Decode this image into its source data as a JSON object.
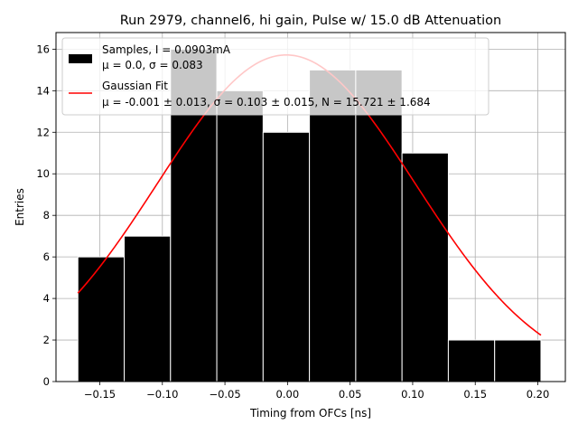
{
  "chart_data": {
    "type": "bar",
    "title": "Run 2979, channel6, hi gain, Pulse w/ 15.0 dB Attenuation",
    "xlabel": "Timing from OFCs [ns]",
    "ylabel": "Entries",
    "xlim": [
      -0.185,
      0.222
    ],
    "ylim": [
      0,
      16.8
    ],
    "xticks": [
      -0.15,
      -0.1,
      -0.05,
      0.0,
      0.05,
      0.1,
      0.15,
      0.2
    ],
    "xtick_labels": [
      "−0.15",
      "−0.10",
      "−0.05",
      "0.00",
      "0.05",
      "0.10",
      "0.15",
      "0.20"
    ],
    "yticks": [
      0,
      2,
      4,
      6,
      8,
      10,
      12,
      14,
      16
    ],
    "ytick_labels": [
      "0",
      "2",
      "4",
      "6",
      "8",
      "10",
      "12",
      "14",
      "16"
    ],
    "grid": true,
    "legend_placement": "top-left",
    "histogram": {
      "bin_edges": [
        -0.1675,
        -0.1305,
        -0.0935,
        -0.0565,
        -0.0195,
        0.0175,
        0.0545,
        0.0915,
        0.1285,
        0.1655,
        0.2025
      ],
      "counts": [
        6,
        7,
        16,
        14,
        12,
        15,
        15,
        11,
        2,
        2
      ],
      "color": "#000000",
      "edgecolor": "#ffffff"
    },
    "fit": {
      "mu": -0.001,
      "sigma": 0.103,
      "N": 15.721,
      "x_range": [
        -0.1675,
        0.2025
      ],
      "color": "#ff0000"
    },
    "legend": {
      "samples_line1": "Samples, I = 0.0903mA",
      "samples_line2": "μ = 0.0, σ = 0.083",
      "fit_line1": "Gaussian Fit",
      "fit_line2": "μ = -0.001 ± 0.013, σ = 0.103 ± 0.015, N = 15.721 ± 1.684"
    }
  }
}
